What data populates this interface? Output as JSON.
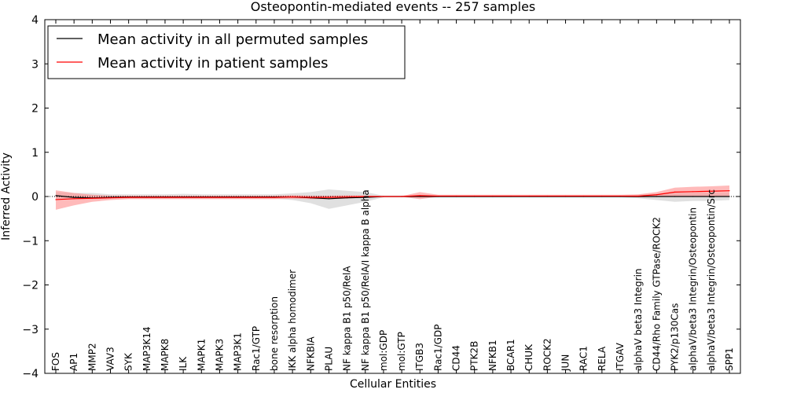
{
  "chart_data": {
    "type": "line",
    "title": "Osteopontin-mediated events -- 257 samples",
    "xlabel": "Cellular Entities",
    "ylabel": "Inferred Activity",
    "ylim": [
      -4,
      4
    ],
    "yticks": [
      -4,
      -3,
      -2,
      -1,
      0,
      1,
      2,
      3,
      4
    ],
    "ytick_labels": [
      "−4",
      "−3",
      "−2",
      "−1",
      "0",
      "1",
      "2",
      "3",
      "4"
    ],
    "legend_position": "top-left",
    "categories": [
      "FOS",
      "AP1",
      "MMP2",
      "VAV3",
      "SYK",
      "MAP3K14",
      "MAPK8",
      "ILK",
      "MAPK1",
      "MAPK3",
      "MAP3K1",
      "Rac1/GTP",
      "bone resorption",
      "IKK alpha homodimer",
      "NFKBIA",
      "PLAU",
      "NF kappa B1 p50/RelA",
      "NF kappa B1 p50/RelA/I kappa B alpha",
      "mol:GDP",
      "mol:GTP",
      "ITGB3",
      "Rac1/GDP",
      "CD44",
      "PTK2B",
      "NFKB1",
      "BCAR1",
      "CHUK",
      "ROCK2",
      "JUN",
      "RAC1",
      "RELA",
      "ITGAV",
      "alphaV beta3 Integrin",
      "CD44/Rho Family GTPase/ROCK2",
      "PYK2/p130Cas",
      "alphaV/beta3 Integrin/Osteopontin",
      "alphaV/beta3 Integrin/Osteopontin/Src",
      "SPP1"
    ],
    "series": [
      {
        "name": "Mean activity in all permuted samples",
        "color": "#000000",
        "band_color": "#bbbbbb",
        "values": [
          0.02,
          -0.02,
          -0.03,
          -0.02,
          -0.01,
          -0.01,
          -0.01,
          -0.01,
          -0.01,
          -0.01,
          -0.01,
          -0.01,
          -0.01,
          -0.01,
          -0.03,
          -0.05,
          -0.03,
          -0.02,
          0.0,
          0.0,
          0.0,
          0.0,
          0.0,
          0.0,
          0.0,
          0.0,
          0.0,
          0.0,
          0.0,
          0.0,
          0.0,
          0.0,
          0.0,
          0.0,
          0.0,
          0.0,
          0.0,
          0.0
        ],
        "lower": [
          -0.08,
          -0.05,
          -0.06,
          -0.05,
          -0.05,
          -0.05,
          -0.05,
          -0.05,
          -0.05,
          -0.05,
          -0.05,
          -0.05,
          -0.05,
          -0.08,
          -0.15,
          -0.28,
          -0.2,
          -0.12,
          -0.02,
          -0.02,
          -0.02,
          -0.02,
          -0.02,
          -0.02,
          -0.02,
          -0.02,
          -0.02,
          -0.02,
          -0.02,
          -0.02,
          -0.02,
          -0.02,
          -0.04,
          -0.08,
          -0.12,
          -0.1,
          -0.1,
          -0.08
        ],
        "upper": [
          0.1,
          0.08,
          0.08,
          0.05,
          0.05,
          0.05,
          0.05,
          0.06,
          0.05,
          0.05,
          0.05,
          0.05,
          0.05,
          0.07,
          0.1,
          0.16,
          0.13,
          0.1,
          0.02,
          0.02,
          0.02,
          0.02,
          0.02,
          0.02,
          0.02,
          0.02,
          0.02,
          0.02,
          0.02,
          0.02,
          0.02,
          0.02,
          0.04,
          0.06,
          0.08,
          0.08,
          0.08,
          0.08
        ]
      },
      {
        "name": "Mean activity in patient samples",
        "color": "#ff0000",
        "band_color": "#ff8c8c",
        "values": [
          -0.07,
          -0.05,
          -0.04,
          -0.03,
          -0.02,
          -0.02,
          -0.02,
          -0.02,
          -0.02,
          -0.02,
          -0.02,
          -0.02,
          -0.02,
          -0.01,
          -0.02,
          -0.02,
          -0.01,
          0.0,
          0.0,
          0.0,
          0.02,
          0.01,
          0.01,
          0.01,
          0.01,
          0.01,
          0.01,
          0.01,
          0.01,
          0.01,
          0.01,
          0.01,
          0.01,
          0.04,
          0.1,
          0.11,
          0.12,
          0.13
        ],
        "lower": [
          -0.3,
          -0.2,
          -0.12,
          -0.08,
          -0.06,
          -0.06,
          -0.06,
          -0.06,
          -0.06,
          -0.06,
          -0.06,
          -0.06,
          -0.06,
          -0.05,
          -0.06,
          -0.06,
          -0.05,
          -0.02,
          -0.01,
          -0.01,
          -0.06,
          -0.01,
          -0.01,
          -0.01,
          -0.01,
          -0.01,
          -0.01,
          -0.01,
          -0.01,
          -0.01,
          -0.01,
          -0.01,
          -0.02,
          -0.01,
          0.0,
          0.0,
          0.0,
          0.01
        ],
        "upper": [
          0.14,
          0.08,
          0.04,
          0.02,
          0.02,
          0.02,
          0.02,
          0.02,
          0.02,
          0.02,
          0.02,
          0.02,
          0.02,
          0.03,
          0.02,
          0.02,
          0.03,
          0.02,
          0.01,
          0.01,
          0.1,
          0.04,
          0.04,
          0.04,
          0.04,
          0.04,
          0.04,
          0.04,
          0.04,
          0.04,
          0.04,
          0.04,
          0.05,
          0.1,
          0.2,
          0.22,
          0.23,
          0.25
        ]
      }
    ]
  }
}
